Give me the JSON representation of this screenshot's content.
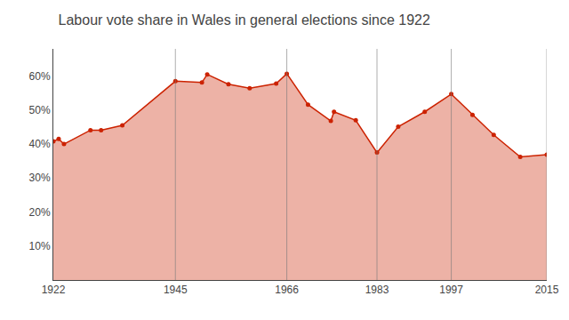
{
  "chart_data": {
    "type": "area",
    "title": "Labour vote share in Wales in general elections since 1922",
    "x": [
      1922,
      1923,
      1924,
      1929,
      1931,
      1935,
      1945,
      1950,
      1951,
      1955,
      1959,
      1964,
      1966,
      1970,
      1974.3,
      1974.9,
      1979,
      1983,
      1987,
      1992,
      1997,
      2001,
      2005,
      2010,
      2015
    ],
    "values": [
      40.8,
      41.5,
      40.0,
      44.1,
      44.1,
      45.5,
      58.5,
      58.1,
      60.5,
      57.6,
      56.4,
      57.8,
      60.7,
      51.6,
      46.8,
      49.5,
      47.0,
      37.5,
      45.1,
      49.5,
      54.7,
      48.6,
      42.7,
      36.2,
      36.9
    ],
    "highlight_x": [
      1945,
      1966,
      1983,
      1997,
      2015
    ],
    "color": "#cc2200",
    "marker": "circle",
    "xlim": [
      1922,
      2015
    ],
    "xticks": [
      1922,
      1945,
      1966,
      1983,
      1997,
      2015
    ],
    "ylim": [
      0,
      68
    ],
    "yticks": [
      {
        "value": 10,
        "label": "10%"
      },
      {
        "value": 20,
        "label": "20%"
      },
      {
        "value": 30,
        "label": "30%"
      },
      {
        "value": 40,
        "label": "40%"
      },
      {
        "value": 50,
        "label": "50%"
      },
      {
        "value": 60,
        "label": "60%"
      }
    ],
    "grid": false
  }
}
